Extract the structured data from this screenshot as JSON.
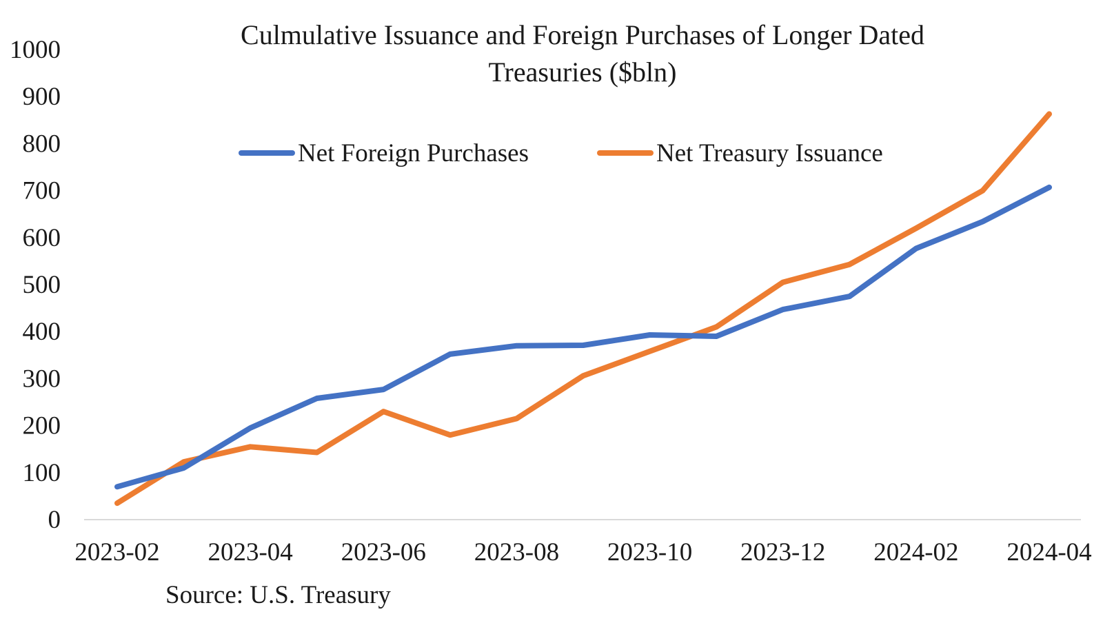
{
  "chart_data": {
    "type": "line",
    "title_lines": [
      "Culmulative  Issuance and Foreign Purchases of Longer Dated",
      "Treasuries ($bln)"
    ],
    "source": "Source: U.S. Treasury",
    "xlabel": "",
    "ylabel": "",
    "x": [
      "2023-02",
      "2023-03",
      "2023-04",
      "2023-05",
      "2023-06",
      "2023-07",
      "2023-08",
      "2023-09",
      "2023-10",
      "2023-11",
      "2023-12",
      "2024-01",
      "2024-02",
      "2024-03",
      "2024-04"
    ],
    "x_tick_labels": [
      "2023-02",
      "2023-04",
      "2023-06",
      "2023-08",
      "2023-10",
      "2023-12",
      "2024-02",
      "2024-04"
    ],
    "ylim": [
      0,
      1000
    ],
    "y_ticks": [
      0,
      100,
      200,
      300,
      400,
      500,
      600,
      700,
      800,
      900,
      1000
    ],
    "grid": false,
    "legend_position": "top",
    "series": [
      {
        "name": "Net Foreign Purchases",
        "color": "#4472C4",
        "values": [
          70,
          110,
          195,
          258,
          277,
          352,
          370,
          371,
          393,
          390,
          447,
          475,
          577,
          634,
          707
        ]
      },
      {
        "name": "Net Treasury Issuance",
        "color": "#ED7D31",
        "values": [
          35,
          123,
          155,
          143,
          230,
          180,
          215,
          306,
          358,
          410,
          505,
          543,
          620,
          700,
          863
        ]
      }
    ]
  }
}
